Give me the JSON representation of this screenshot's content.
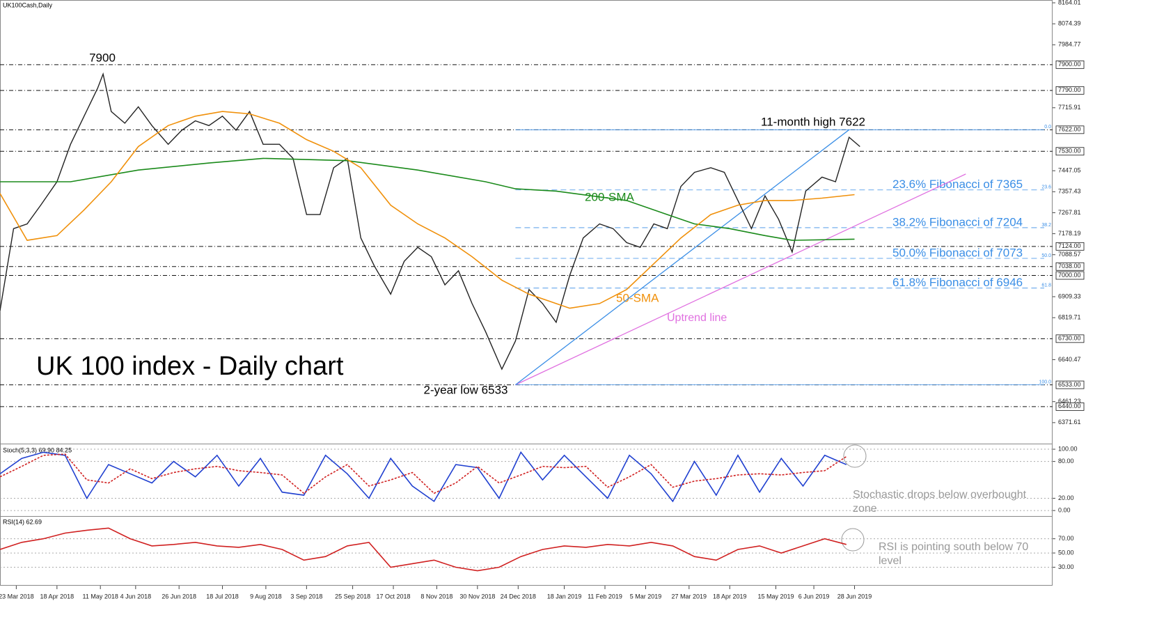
{
  "chart_data": [
    {
      "type": "line",
      "title": "UK100Cash,Daily",
      "caption": "UK 100 index - Daily chart",
      "xlim": [
        0,
        388
      ],
      "ylim": [
        6285,
        8176
      ],
      "yticks": [
        8164.01,
        8074.39,
        7984.77,
        7715.91,
        7447.05,
        7357.43,
        7267.81,
        7178.19,
        7088.57,
        6909.33,
        6819.71,
        6640.47,
        6461.23,
        6371.61
      ],
      "levels": [
        {
          "value": 7900,
          "label": "7900.00"
        },
        {
          "value": 7790,
          "label": "7790.00"
        },
        {
          "value": 7622,
          "label": "7622.00"
        },
        {
          "value": 7530,
          "label": "7530.00"
        },
        {
          "value": 7124,
          "label": "7124.00"
        },
        {
          "value": 7038,
          "label": "7038.00"
        },
        {
          "value": 7000,
          "label": "7000.00"
        },
        {
          "value": 6730,
          "label": "6730.00"
        },
        {
          "value": 6533,
          "label": "6533.00"
        },
        {
          "value": 6440,
          "label": "6440.00"
        }
      ],
      "fibonacci": [
        {
          "value": 7622,
          "label": "0.0"
        },
        {
          "value": 7365,
          "label": "23.6",
          "text": "23.6% Fibonacci of 7365"
        },
        {
          "value": 7204,
          "label": "38.2",
          "text": "38.2% Fibonacci of 7204"
        },
        {
          "value": 7073,
          "label": "50.0",
          "text": "50.0% Fibonacci of 7073"
        },
        {
          "value": 6946,
          "label": "61.8",
          "text": "61.8% Fibonacci of 6946"
        },
        {
          "value": 6533,
          "label": "100.0"
        }
      ],
      "xticks": [
        {
          "value": 6,
          "label": "23 Mar 2018"
        },
        {
          "value": 21,
          "label": "18 Apr 2018"
        },
        {
          "value": 37,
          "label": "11 May 2018"
        },
        {
          "value": 50,
          "label": "4 Jun 2018"
        },
        {
          "value": 66,
          "label": "26 Jun 2018"
        },
        {
          "value": 82,
          "label": "18 Jul 2018"
        },
        {
          "value": 98,
          "label": "9 Aug 2018"
        },
        {
          "value": 113,
          "label": "3 Sep 2018"
        },
        {
          "value": 130,
          "label": "25 Sep 2018"
        },
        {
          "value": 145,
          "label": "17 Oct 2018"
        },
        {
          "value": 161,
          "label": "8 Nov 2018"
        },
        {
          "value": 176,
          "label": "30 Nov 2018"
        },
        {
          "value": 191,
          "label": "24 Dec 2018"
        },
        {
          "value": 208,
          "label": "18 Jan 2019"
        },
        {
          "value": 223,
          "label": "11 Feb 2019"
        },
        {
          "value": 238,
          "label": "5 Mar 2019"
        },
        {
          "value": 254,
          "label": "27 Mar 2019"
        },
        {
          "value": 269,
          "label": "18 Apr 2019"
        },
        {
          "value": 286,
          "label": "15 May 2019"
        },
        {
          "value": 300,
          "label": "6 Jun 2019"
        },
        {
          "value": 315,
          "label": "28 Jun 2019"
        }
      ],
      "series": [
        {
          "color": "#222222",
          "x": [
            0,
            5,
            10,
            15,
            21,
            26,
            31,
            36,
            38,
            41,
            46,
            51,
            56,
            62,
            67,
            72,
            77,
            82,
            87,
            92,
            97,
            103,
            108,
            113,
            118,
            123,
            128,
            133,
            138,
            144,
            149,
            154,
            159,
            164,
            169,
            174,
            179,
            185,
            190,
            195,
            200,
            205,
            210,
            215,
            221,
            226,
            231,
            236,
            241,
            246,
            251,
            256,
            262,
            267,
            272,
            277,
            282,
            287,
            292,
            297,
            303,
            308,
            313,
            317
          ],
          "values": [
            6850,
            7200,
            7220,
            7300,
            7400,
            7560,
            7680,
            7800,
            7860,
            7700,
            7650,
            7720,
            7640,
            7560,
            7620,
            7660,
            7640,
            7680,
            7620,
            7700,
            7560,
            7560,
            7500,
            7260,
            7260,
            7460,
            7500,
            7160,
            7040,
            6920,
            7060,
            7120,
            7080,
            6960,
            7020,
            6880,
            6760,
            6600,
            6720,
            6940,
            6880,
            6800,
            7000,
            7160,
            7220,
            7200,
            7140,
            7120,
            7220,
            7200,
            7380,
            7440,
            7460,
            7440,
            7320,
            7200,
            7340,
            7240,
            7100,
            7360,
            7420,
            7400,
            7590,
            7550
          ]
        },
        {
          "name": "200-SMA",
          "color": "#1a8a1a",
          "x": [
            0,
            26,
            51,
            77,
            97,
            128,
            154,
            179,
            190,
            205,
            231,
            246,
            256,
            269,
            282,
            292,
            315
          ],
          "values": [
            7400,
            7400,
            7450,
            7480,
            7500,
            7490,
            7450,
            7400,
            7370,
            7360,
            7320,
            7260,
            7220,
            7200,
            7170,
            7150,
            7155
          ]
        },
        {
          "name": "50-SMA",
          "color": "#f0900a",
          "x": [
            0,
            5,
            10,
            21,
            31,
            41,
            51,
            62,
            72,
            82,
            92,
            103,
            113,
            123,
            133,
            144,
            154,
            164,
            174,
            185,
            195,
            205,
            210,
            221,
            231,
            241,
            251,
            262,
            272,
            282,
            292,
            303,
            315
          ],
          "values": [
            7350,
            7250,
            7150,
            7170,
            7280,
            7400,
            7550,
            7640,
            7680,
            7700,
            7690,
            7650,
            7580,
            7530,
            7460,
            7300,
            7220,
            7160,
            7080,
            6980,
            6920,
            6880,
            6860,
            6880,
            6940,
            7050,
            7160,
            7260,
            7300,
            7320,
            7320,
            7330,
            7345
          ]
        }
      ],
      "lines": [
        {
          "name": "Uptrend line",
          "color": "#e070e0",
          "x": [
            190,
            356
          ],
          "values": [
            6533,
            7433
          ]
        },
        {
          "color": "#3a8ee6",
          "x": [
            190,
            313
          ],
          "values": [
            6533,
            7622
          ]
        }
      ],
      "annotations": [
        "7900",
        "11-month high 7622",
        "2-year low 6533"
      ]
    },
    {
      "type": "line",
      "title": "Stoch(5,3,3) 69.90 84.25",
      "xlim": [
        0,
        388
      ],
      "ylim": [
        -9,
        108
      ],
      "yticks": [
        {
          "value": 100,
          "label": "100.00"
        },
        {
          "value": 80,
          "label": "80.00"
        },
        {
          "value": 20,
          "label": "20.00"
        },
        {
          "value": 0,
          "label": "0.00"
        }
      ],
      "x": [
        0,
        8,
        16,
        24,
        32,
        40,
        48,
        56,
        64,
        72,
        80,
        88,
        96,
        104,
        112,
        120,
        128,
        136,
        144,
        152,
        160,
        168,
        176,
        184,
        192,
        200,
        208,
        216,
        224,
        232,
        240,
        248,
        256,
        264,
        272,
        280,
        288,
        296,
        304,
        312
      ],
      "series": [
        {
          "color": "#2040d0",
          "values": [
            60,
            85,
            95,
            90,
            20,
            75,
            60,
            45,
            80,
            55,
            90,
            40,
            85,
            30,
            25,
            90,
            60,
            20,
            85,
            40,
            15,
            75,
            70,
            20,
            95,
            50,
            90,
            55,
            20,
            90,
            60,
            15,
            80,
            25,
            90,
            30,
            85,
            40,
            90,
            75
          ]
        },
        {
          "color": "#d02020",
          "dashed": true,
          "values": [
            55,
            72,
            90,
            92,
            50,
            45,
            68,
            52,
            62,
            68,
            72,
            65,
            62,
            58,
            28,
            55,
            75,
            40,
            50,
            62,
            28,
            45,
            72,
            45,
            58,
            72,
            70,
            72,
            38,
            55,
            75,
            38,
            48,
            52,
            58,
            60,
            58,
            62,
            65,
            88
          ]
        }
      ],
      "annotations": [
        "Stochastic drops below overbought",
        "zone"
      ]
    },
    {
      "type": "line",
      "title": "RSI(14) 62.69",
      "xlim": [
        0,
        388
      ],
      "ylim": [
        5,
        101
      ],
      "yticks": [
        {
          "value": 70,
          "label": "70.00"
        },
        {
          "value": 50,
          "label": "50.00"
        },
        {
          "value": 30,
          "label": "30.00"
        }
      ],
      "x": [
        0,
        8,
        16,
        24,
        32,
        40,
        48,
        56,
        64,
        72,
        80,
        88,
        96,
        104,
        112,
        120,
        128,
        136,
        144,
        152,
        160,
        168,
        176,
        184,
        192,
        200,
        208,
        216,
        224,
        232,
        240,
        248,
        256,
        264,
        272,
        280,
        288,
        296,
        304,
        312
      ],
      "series": [
        {
          "color": "#d02020",
          "values": [
            55,
            65,
            70,
            78,
            82,
            85,
            70,
            60,
            62,
            65,
            60,
            58,
            62,
            55,
            40,
            45,
            60,
            65,
            30,
            35,
            40,
            30,
            25,
            30,
            45,
            55,
            60,
            58,
            62,
            60,
            65,
            60,
            45,
            40,
            55,
            60,
            50,
            60,
            70,
            62
          ]
        }
      ],
      "annotations": [
        "RSI is pointing south below 70",
        "level"
      ]
    }
  ]
}
